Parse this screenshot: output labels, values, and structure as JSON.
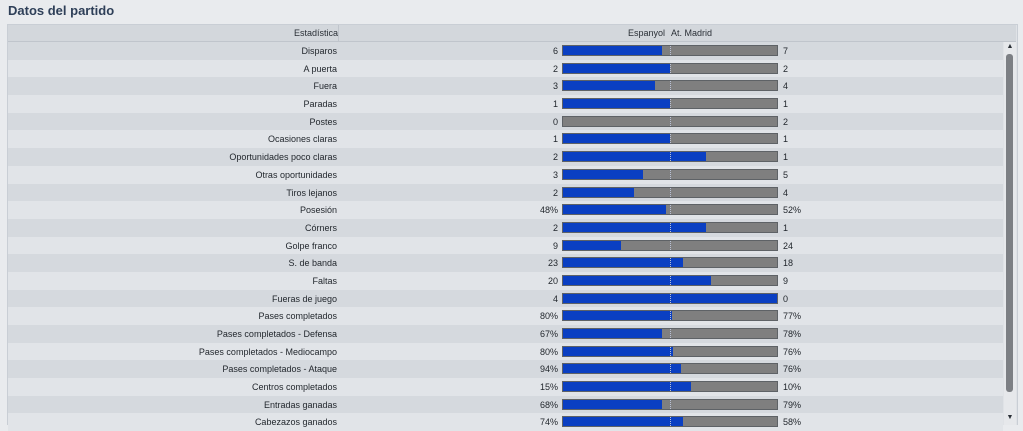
{
  "title": "Datos del partido",
  "header": {
    "stat_label": "Estadística",
    "home_team": "Espanyol",
    "away_team": "At. Madrid"
  },
  "colors": {
    "home_bar": "#0a3fc2",
    "away_bar": "#7f7f7f"
  },
  "stats": [
    {
      "label": "Disparos",
      "home": "6",
      "away": "7",
      "home_share": 0.462
    },
    {
      "label": "A puerta",
      "home": "2",
      "away": "2",
      "home_share": 0.5
    },
    {
      "label": "Fuera",
      "home": "3",
      "away": "4",
      "home_share": 0.429
    },
    {
      "label": "Paradas",
      "home": "1",
      "away": "1",
      "home_share": 0.5
    },
    {
      "label": "Postes",
      "home": "0",
      "away": "2",
      "home_share": 0
    },
    {
      "label": "Ocasiones claras",
      "home": "1",
      "away": "1",
      "home_share": 0.5
    },
    {
      "label": "Oportunidades poco claras",
      "home": "2",
      "away": "1",
      "home_share": 0.667
    },
    {
      "label": "Otras oportunidades",
      "home": "3",
      "away": "5",
      "home_share": 0.375
    },
    {
      "label": "Tiros lejanos",
      "home": "2",
      "away": "4",
      "home_share": 0.333
    },
    {
      "label": "Posesión",
      "home": "48%",
      "away": "52%",
      "home_share": 0.48
    },
    {
      "label": "Córners",
      "home": "2",
      "away": "1",
      "home_share": 0.667
    },
    {
      "label": "Golpe franco",
      "home": "9",
      "away": "24",
      "home_share": 0.273
    },
    {
      "label": "S. de banda",
      "home": "23",
      "away": "18",
      "home_share": 0.561
    },
    {
      "label": "Faltas",
      "home": "20",
      "away": "9",
      "home_share": 0.69
    },
    {
      "label": "Fueras de juego",
      "home": "4",
      "away": "0",
      "home_share": 1
    },
    {
      "label": "Pases completados",
      "home": "80%",
      "away": "77%",
      "home_share": 0.51
    },
    {
      "label": "Pases completados - Defensa",
      "home": "67%",
      "away": "78%",
      "home_share": 0.462
    },
    {
      "label": "Pases completados - Mediocampo",
      "home": "80%",
      "away": "76%",
      "home_share": 0.513
    },
    {
      "label": "Pases completados - Ataque",
      "home": "94%",
      "away": "76%",
      "home_share": 0.553
    },
    {
      "label": "Centros completados",
      "home": "15%",
      "away": "10%",
      "home_share": 0.6
    },
    {
      "label": "Entradas ganadas",
      "home": "68%",
      "away": "79%",
      "home_share": 0.463
    },
    {
      "label": "Cabezazos ganados",
      "home": "74%",
      "away": "58%",
      "home_share": 0.561
    }
  ]
}
